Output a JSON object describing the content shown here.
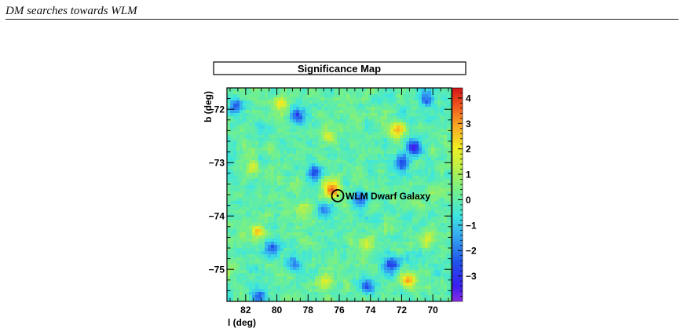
{
  "header": {
    "running_title": "DM searches towards WLM"
  },
  "chart_data": {
    "type": "heatmap",
    "title": "Significance Map",
    "xlabel": "l (deg)",
    "ylabel": "b (deg)",
    "x_axis_reversed": true,
    "xlim": [
      83.2,
      68.8
    ],
    "ylim": [
      -75.6,
      -71.6
    ],
    "x_ticks": [
      82,
      80,
      78,
      76,
      74,
      72,
      70
    ],
    "y_ticks": [
      -72,
      -73,
      -74,
      -75
    ],
    "x_tick_labels": [
      "82",
      "80",
      "78",
      "76",
      "74",
      "72",
      "70"
    ],
    "y_tick_labels": [
      "−72",
      "−73",
      "−74",
      "−75"
    ],
    "colorbar": {
      "range": [
        -4,
        4.4
      ],
      "ticks": [
        4,
        3,
        2,
        1,
        0,
        -1,
        -2,
        -3
      ],
      "tick_labels": [
        "4",
        "3",
        "2",
        "1",
        "0",
        "−1",
        "−2",
        "−3"
      ]
    },
    "annotation": {
      "label": "WLM Dwarf Galaxy",
      "l": 76.1,
      "b": -73.62
    },
    "hotspots": [
      {
        "l": 76.5,
        "b": -73.5,
        "value": 3.9
      },
      {
        "l": 71.6,
        "b": -75.2,
        "value": 3.2
      },
      {
        "l": 72.3,
        "b": -72.4,
        "value": 2.6
      },
      {
        "l": 81.2,
        "b": -74.3,
        "value": 2.6
      },
      {
        "l": 79.7,
        "b": -71.9,
        "value": 2.1
      },
      {
        "l": 76.7,
        "b": -72.5,
        "value": 1.8
      },
      {
        "l": 74.2,
        "b": -74.5,
        "value": 1.8
      },
      {
        "l": 81.6,
        "b": -73.1,
        "value": 1.6
      },
      {
        "l": 76.9,
        "b": -75.2,
        "value": 1.7
      },
      {
        "l": 70.3,
        "b": -74.4,
        "value": 1.5
      },
      {
        "l": 78.3,
        "b": -73.9,
        "value": 1.4
      }
    ],
    "coldspots": [
      {
        "l": 71.2,
        "b": -72.7,
        "value": -2.9
      },
      {
        "l": 72.0,
        "b": -73.0,
        "value": -2.6
      },
      {
        "l": 74.7,
        "b": -73.7,
        "value": -2.6
      },
      {
        "l": 72.6,
        "b": -74.9,
        "value": -2.9
      },
      {
        "l": 74.2,
        "b": -75.3,
        "value": -2.4
      },
      {
        "l": 80.3,
        "b": -74.6,
        "value": -2.5
      },
      {
        "l": 78.6,
        "b": -72.1,
        "value": -2.3
      },
      {
        "l": 77.6,
        "b": -73.2,
        "value": -2.5
      },
      {
        "l": 76.9,
        "b": -73.9,
        "value": -2.0
      },
      {
        "l": 82.6,
        "b": -71.95,
        "value": -2.3
      },
      {
        "l": 81.1,
        "b": -75.5,
        "value": -2.1
      },
      {
        "l": 70.4,
        "b": -71.8,
        "value": -2.2
      },
      {
        "l": 79.0,
        "b": -74.9,
        "value": -1.8
      }
    ]
  }
}
